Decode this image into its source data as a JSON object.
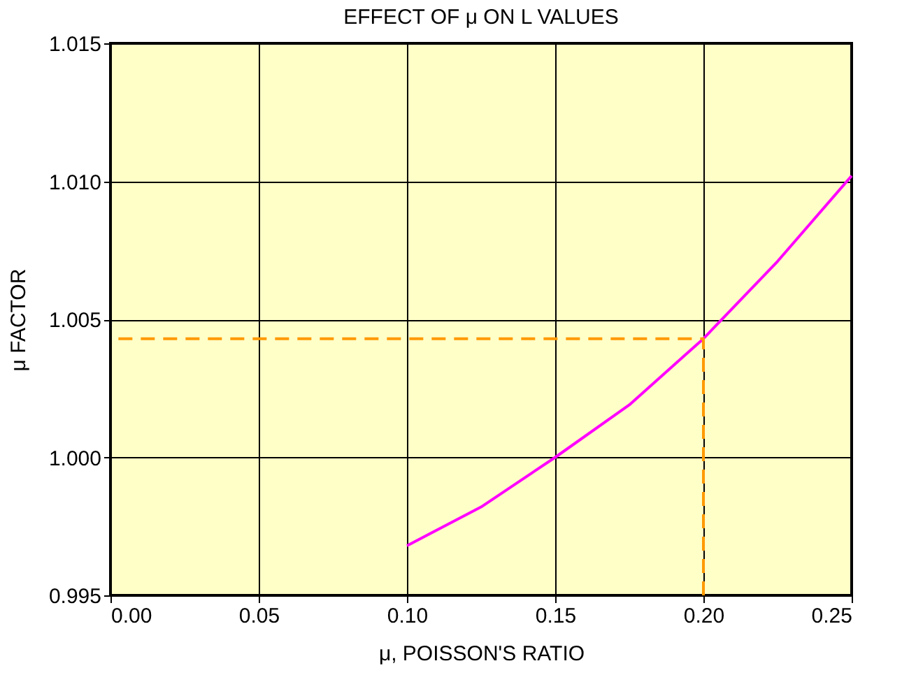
{
  "chart_data": {
    "type": "line",
    "title": "EFFECT OF μ ON L VALUES",
    "xlabel": "μ, POISSON'S RATIO",
    "ylabel": "μ FACTOR",
    "xlim": [
      0,
      0.25
    ],
    "ylim": [
      0.995,
      1.015
    ],
    "xticks": [
      {
        "value": 0,
        "label": "0.00"
      },
      {
        "value": 0.05,
        "label": "0.05"
      },
      {
        "value": 0.1,
        "label": "0.10"
      },
      {
        "value": 0.15,
        "label": "0.15"
      },
      {
        "value": 0.2,
        "label": "0.20"
      },
      {
        "value": 0.25,
        "label": "0.25"
      }
    ],
    "yticks": [
      {
        "value": 0.995,
        "label": "0.995"
      },
      {
        "value": 1.0,
        "label": "1.000"
      },
      {
        "value": 1.005,
        "label": "1.005"
      },
      {
        "value": 1.01,
        "label": "1.010"
      },
      {
        "value": 1.015,
        "label": "1.015"
      }
    ],
    "grid": true,
    "marker": "none",
    "series": [
      {
        "color": "#ff00ff",
        "line_style": "solid",
        "x": [
          0.1,
          0.125,
          0.15,
          0.175,
          0.2,
          0.225,
          0.25
        ],
        "values": [
          0.9968,
          0.9982,
          1.0,
          1.0019,
          1.0043,
          1.0071,
          1.0102
        ]
      },
      {
        "color": "#ff9900",
        "line_style": "dashed",
        "x": [
          0.2,
          0.2,
          0.0
        ],
        "values": [
          0.995,
          1.0043,
          1.0043
        ]
      }
    ]
  }
}
